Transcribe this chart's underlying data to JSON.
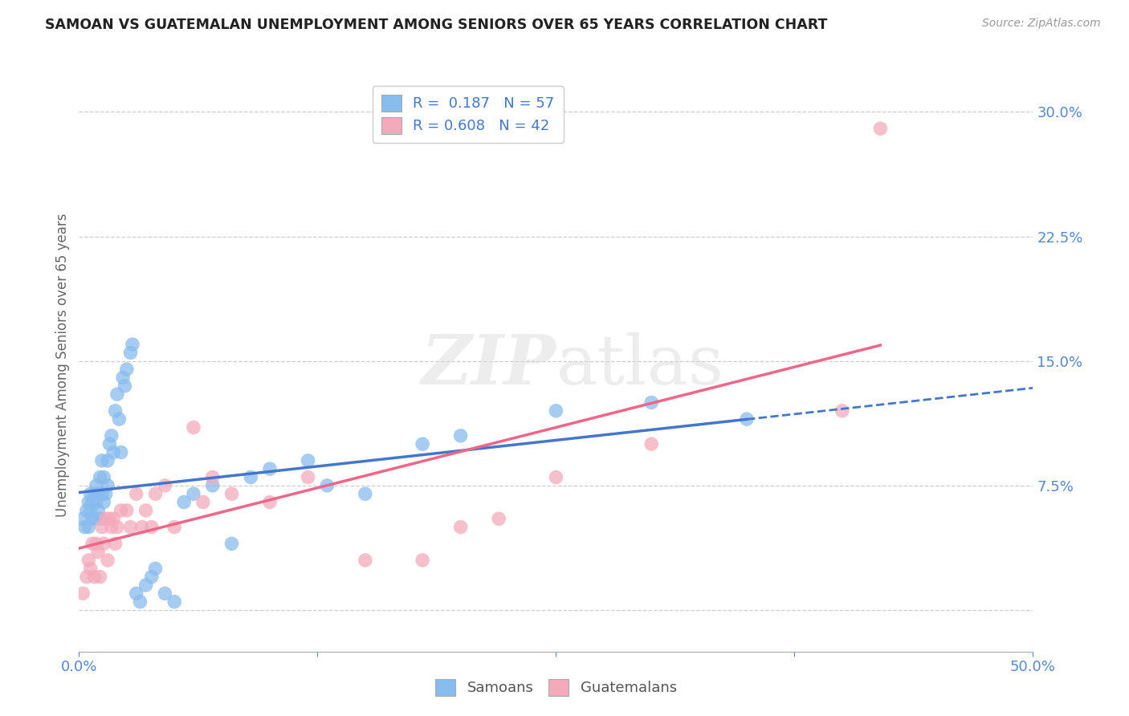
{
  "title": "SAMOAN VS GUATEMALAN UNEMPLOYMENT AMONG SENIORS OVER 65 YEARS CORRELATION CHART",
  "source": "Source: ZipAtlas.com",
  "ylabel": "Unemployment Among Seniors over 65 years",
  "xlim": [
    0.0,
    0.5
  ],
  "ylim": [
    -0.025,
    0.32
  ],
  "xticks": [
    0.0,
    0.125,
    0.25,
    0.375,
    0.5
  ],
  "xticklabels": [
    "0.0%",
    "",
    "",
    "",
    "50.0%"
  ],
  "yticks_right": [
    0.0,
    0.075,
    0.15,
    0.225,
    0.3
  ],
  "yticklabels_right": [
    "",
    "7.5%",
    "15.0%",
    "22.5%",
    "30.0%"
  ],
  "samoan_color": "#88BBEE",
  "guatemalan_color": "#F4AABB",
  "samoan_line_color": "#4477CC",
  "guatemalan_line_color": "#EE6688",
  "samoan_R": 0.187,
  "samoan_N": 57,
  "guatemalan_R": 0.608,
  "guatemalan_N": 42,
  "background_color": "#FFFFFF",
  "samoan_x": [
    0.002,
    0.003,
    0.004,
    0.005,
    0.005,
    0.006,
    0.006,
    0.007,
    0.007,
    0.008,
    0.008,
    0.009,
    0.009,
    0.01,
    0.01,
    0.011,
    0.011,
    0.012,
    0.012,
    0.013,
    0.013,
    0.014,
    0.015,
    0.015,
    0.016,
    0.017,
    0.018,
    0.019,
    0.02,
    0.021,
    0.022,
    0.023,
    0.024,
    0.025,
    0.027,
    0.028,
    0.03,
    0.032,
    0.035,
    0.038,
    0.04,
    0.045,
    0.05,
    0.055,
    0.06,
    0.07,
    0.08,
    0.09,
    0.1,
    0.12,
    0.13,
    0.15,
    0.18,
    0.2,
    0.25,
    0.3,
    0.35
  ],
  "samoan_y": [
    0.055,
    0.05,
    0.06,
    0.05,
    0.065,
    0.06,
    0.07,
    0.055,
    0.065,
    0.055,
    0.07,
    0.065,
    0.075,
    0.06,
    0.07,
    0.055,
    0.08,
    0.07,
    0.09,
    0.065,
    0.08,
    0.07,
    0.075,
    0.09,
    0.1,
    0.105,
    0.095,
    0.12,
    0.13,
    0.115,
    0.095,
    0.14,
    0.135,
    0.145,
    0.155,
    0.16,
    0.01,
    0.005,
    0.015,
    0.02,
    0.025,
    0.01,
    0.005,
    0.065,
    0.07,
    0.075,
    0.04,
    0.08,
    0.085,
    0.09,
    0.075,
    0.07,
    0.1,
    0.105,
    0.12,
    0.125,
    0.115
  ],
  "guatemalan_x": [
    0.002,
    0.004,
    0.005,
    0.006,
    0.007,
    0.008,
    0.009,
    0.01,
    0.011,
    0.012,
    0.013,
    0.014,
    0.015,
    0.016,
    0.017,
    0.018,
    0.019,
    0.02,
    0.022,
    0.025,
    0.027,
    0.03,
    0.033,
    0.035,
    0.038,
    0.04,
    0.045,
    0.05,
    0.06,
    0.065,
    0.07,
    0.08,
    0.1,
    0.12,
    0.15,
    0.18,
    0.2,
    0.22,
    0.25,
    0.3,
    0.4,
    0.42
  ],
  "guatemalan_y": [
    0.01,
    0.02,
    0.03,
    0.025,
    0.04,
    0.02,
    0.04,
    0.035,
    0.02,
    0.05,
    0.04,
    0.055,
    0.03,
    0.055,
    0.05,
    0.055,
    0.04,
    0.05,
    0.06,
    0.06,
    0.05,
    0.07,
    0.05,
    0.06,
    0.05,
    0.07,
    0.075,
    0.05,
    0.11,
    0.065,
    0.08,
    0.07,
    0.065,
    0.08,
    0.03,
    0.03,
    0.05,
    0.055,
    0.08,
    0.1,
    0.12,
    0.29
  ]
}
